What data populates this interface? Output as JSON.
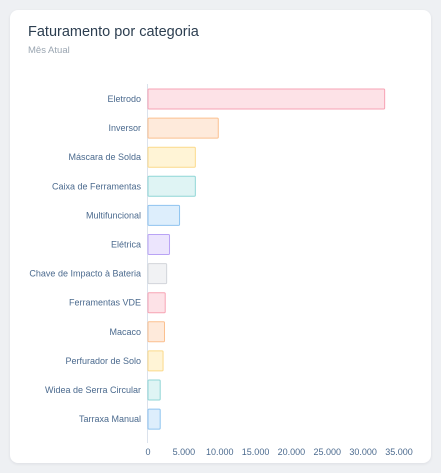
{
  "card": {
    "title": "Faturamento por categoria",
    "subtitle": "Mês Atual"
  },
  "chart_data": {
    "type": "bar",
    "orientation": "horizontal",
    "title": "Faturamento por categoria",
    "subtitle": "Mês Atual",
    "xlabel": "",
    "ylabel": "",
    "xlim": [
      0,
      35000
    ],
    "x_ticks": [
      0,
      5000,
      10000,
      15000,
      20000,
      25000,
      30000,
      35000
    ],
    "x_tick_labels": [
      "0",
      "5.000",
      "10.000",
      "15.000",
      "20.000",
      "25.000",
      "30.000",
      "35.000"
    ],
    "grid": false,
    "legend": "none",
    "categories": [
      "Eletrodo",
      "Inversor",
      "Máscara de Solda",
      "Caixa de Ferramentas",
      "Multifuncional",
      "Elétrica",
      "Chave de Impacto à Bateria",
      "Ferramentas VDE",
      "Macaco",
      "Perfurador de Solo",
      "Widea de Serra Circular",
      "Tarraxa Manual"
    ],
    "values": [
      33000,
      9800,
      6600,
      6600,
      4400,
      3000,
      2600,
      2400,
      2300,
      2100,
      1700,
      1700
    ],
    "colors": [
      {
        "fill": "#fde2e7",
        "stroke": "#f7a3b4"
      },
      {
        "fill": "#feeadb",
        "stroke": "#fbc08f"
      },
      {
        "fill": "#fff4d6",
        "stroke": "#fbd98a"
      },
      {
        "fill": "#dff4f4",
        "stroke": "#8fd6d6"
      },
      {
        "fill": "#ddeefc",
        "stroke": "#8ec3ef"
      },
      {
        "fill": "#ece5fd",
        "stroke": "#b9a3f5"
      },
      {
        "fill": "#f1f2f4",
        "stroke": "#d2d5da"
      },
      {
        "fill": "#fde2e7",
        "stroke": "#f7a3b4"
      },
      {
        "fill": "#feeadb",
        "stroke": "#fbc08f"
      },
      {
        "fill": "#fff4d6",
        "stroke": "#fbd98a"
      },
      {
        "fill": "#dff4f4",
        "stroke": "#8fd6d6"
      },
      {
        "fill": "#ddeefc",
        "stroke": "#8ec3ef"
      }
    ],
    "axis_color": "#dbe2ec"
  }
}
